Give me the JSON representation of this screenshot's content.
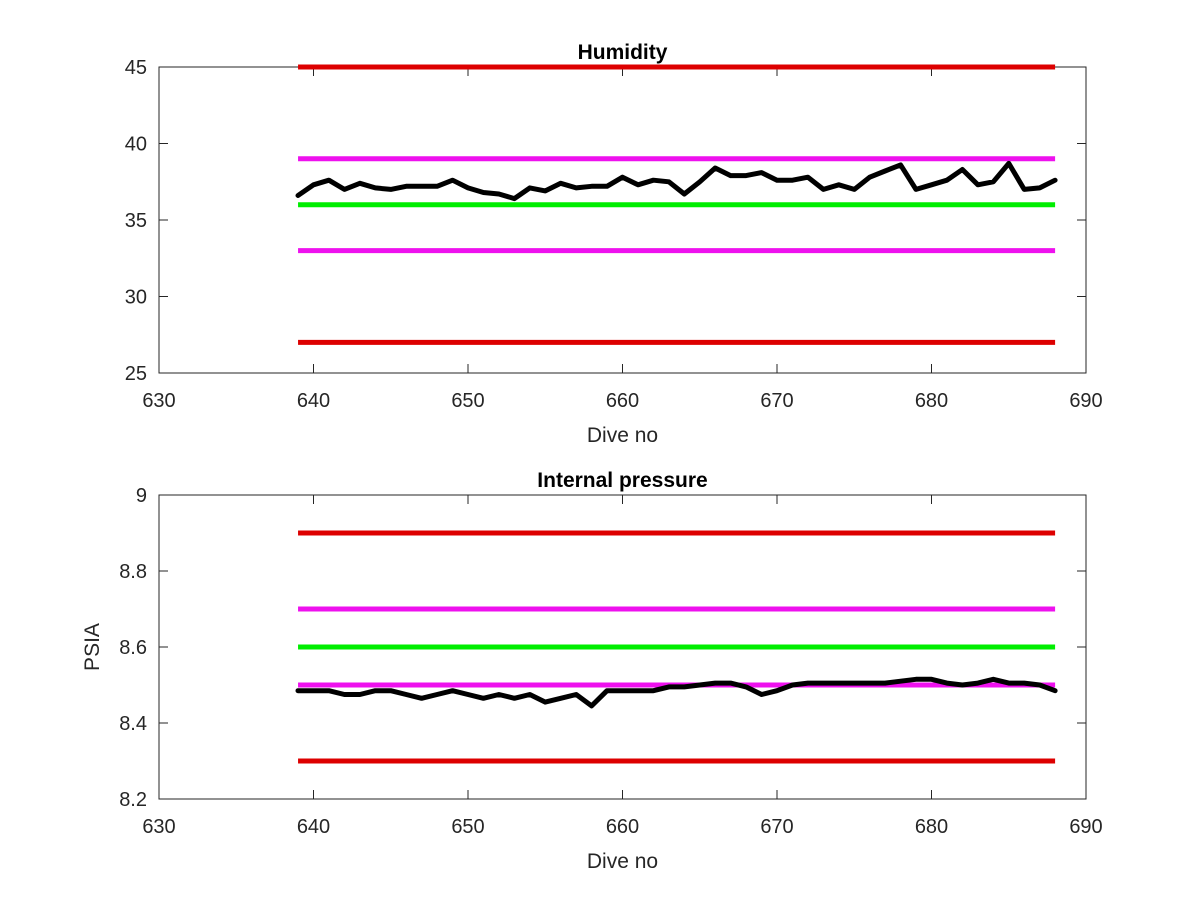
{
  "chart_data": [
    {
      "type": "line",
      "title": "Humidity",
      "xlabel": "Dive no",
      "ylabel": "",
      "xlim": [
        630,
        690
      ],
      "ylim": [
        25,
        45
      ],
      "xticks": [
        "630",
        "640",
        "650",
        "660",
        "670",
        "680",
        "690"
      ],
      "yticks": [
        "25",
        "30",
        "35",
        "40",
        "45"
      ],
      "grid": false,
      "thresholds": [
        {
          "color": "#dd0000",
          "value": 45,
          "x": [
            639,
            688
          ]
        },
        {
          "color": "#ee11ee",
          "value": 39,
          "x": [
            639,
            688
          ]
        },
        {
          "color": "#00ee00",
          "value": 36,
          "x": [
            639,
            688
          ]
        },
        {
          "color": "#ee11ee",
          "value": 33,
          "x": [
            639,
            688
          ]
        },
        {
          "color": "#dd0000",
          "value": 27,
          "x": [
            639,
            688
          ]
        }
      ],
      "series": [
        {
          "color": "#000000",
          "x": [
            639,
            640,
            641,
            642,
            643,
            644,
            645,
            646,
            647,
            648,
            649,
            650,
            651,
            652,
            653,
            654,
            655,
            656,
            657,
            658,
            659,
            660,
            661,
            662,
            663,
            664,
            665,
            666,
            667,
            668,
            669,
            670,
            671,
            672,
            673,
            674,
            675,
            676,
            677,
            678,
            679,
            680,
            681,
            682,
            683,
            684,
            685,
            686,
            687,
            688
          ],
          "y": [
            36.6,
            37.3,
            37.6,
            37.0,
            37.4,
            37.1,
            37.0,
            37.2,
            37.2,
            37.2,
            37.6,
            37.1,
            36.8,
            36.7,
            36.4,
            37.1,
            36.9,
            37.4,
            37.1,
            37.2,
            37.2,
            37.8,
            37.3,
            37.6,
            37.5,
            36.7,
            37.5,
            38.4,
            37.9,
            37.9,
            38.1,
            37.6,
            37.6,
            37.8,
            37.0,
            37.3,
            37.0,
            37.8,
            38.2,
            38.6,
            37.0,
            37.3,
            37.6,
            38.3,
            37.3,
            37.5,
            38.7,
            37.0,
            37.1,
            37.6
          ]
        }
      ]
    },
    {
      "type": "line",
      "title": "Internal pressure",
      "xlabel": "Dive no",
      "ylabel": "PSIA",
      "xlim": [
        630,
        690
      ],
      "ylim": [
        8.2,
        9.0
      ],
      "xticks": [
        "630",
        "640",
        "650",
        "660",
        "670",
        "680",
        "690"
      ],
      "yticks": [
        "8.2",
        "8.4",
        "8.6",
        "8.8",
        "9"
      ],
      "grid": false,
      "thresholds": [
        {
          "color": "#dd0000",
          "value": 8.9,
          "x": [
            639,
            688
          ]
        },
        {
          "color": "#ee11ee",
          "value": 8.7,
          "x": [
            639,
            688
          ]
        },
        {
          "color": "#00ee00",
          "value": 8.6,
          "x": [
            639,
            688
          ]
        },
        {
          "color": "#ee11ee",
          "value": 8.5,
          "x": [
            639,
            688
          ]
        },
        {
          "color": "#dd0000",
          "value": 8.3,
          "x": [
            639,
            688
          ]
        }
      ],
      "series": [
        {
          "color": "#000000",
          "x": [
            639,
            640,
            641,
            642,
            643,
            644,
            645,
            646,
            647,
            648,
            649,
            650,
            651,
            652,
            653,
            654,
            655,
            656,
            657,
            658,
            659,
            660,
            661,
            662,
            663,
            664,
            665,
            666,
            667,
            668,
            669,
            670,
            671,
            672,
            673,
            674,
            675,
            676,
            677,
            678,
            679,
            680,
            681,
            682,
            683,
            684,
            685,
            686,
            687,
            688
          ],
          "y": [
            8.485,
            8.485,
            8.485,
            8.475,
            8.475,
            8.485,
            8.485,
            8.475,
            8.465,
            8.475,
            8.485,
            8.475,
            8.465,
            8.475,
            8.465,
            8.475,
            8.455,
            8.465,
            8.475,
            8.445,
            8.485,
            8.485,
            8.485,
            8.485,
            8.495,
            8.495,
            8.5,
            8.505,
            8.505,
            8.495,
            8.475,
            8.485,
            8.5,
            8.505,
            8.505,
            8.505,
            8.505,
            8.505,
            8.505,
            8.51,
            8.515,
            8.515,
            8.505,
            8.5,
            8.505,
            8.515,
            8.505,
            8.505,
            8.5,
            8.485
          ]
        }
      ]
    }
  ]
}
